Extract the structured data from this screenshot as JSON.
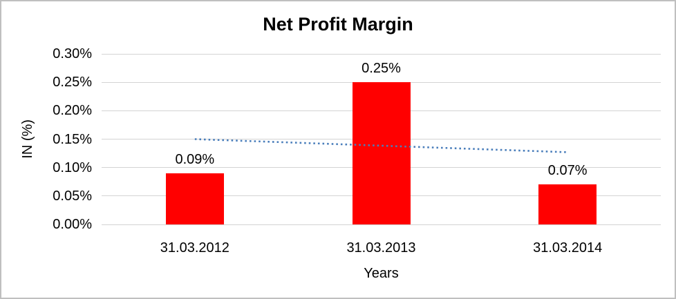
{
  "window": {
    "background_color": "#ffffff",
    "frame_border_color": "#bfbfbf"
  },
  "chart_data": {
    "type": "bar",
    "title": "Net Profit Margin",
    "xlabel": "Years",
    "ylabel": "IN (%)",
    "categories": [
      "31.03.2012",
      "31.03.2013",
      "31.03.2014"
    ],
    "values": [
      0.09,
      0.25,
      0.07
    ],
    "data_labels": [
      "0.09%",
      "0.25%",
      "0.07%"
    ],
    "yticks": [
      "0.30%",
      "0.25%",
      "0.20%",
      "0.15%",
      "0.10%",
      "0.05%",
      "0.00%"
    ],
    "ylim": [
      0,
      0.3
    ],
    "grid": "horizontal-light-gray",
    "gridline_color": "#d3d3d3",
    "bar_color": "#ff0000",
    "text_color": "#000000",
    "legend": "none",
    "trendline": {
      "type": "linear",
      "style": "dotted",
      "color": "#4a7ebb",
      "start_value": 0.15,
      "end_value": 0.127
    }
  }
}
